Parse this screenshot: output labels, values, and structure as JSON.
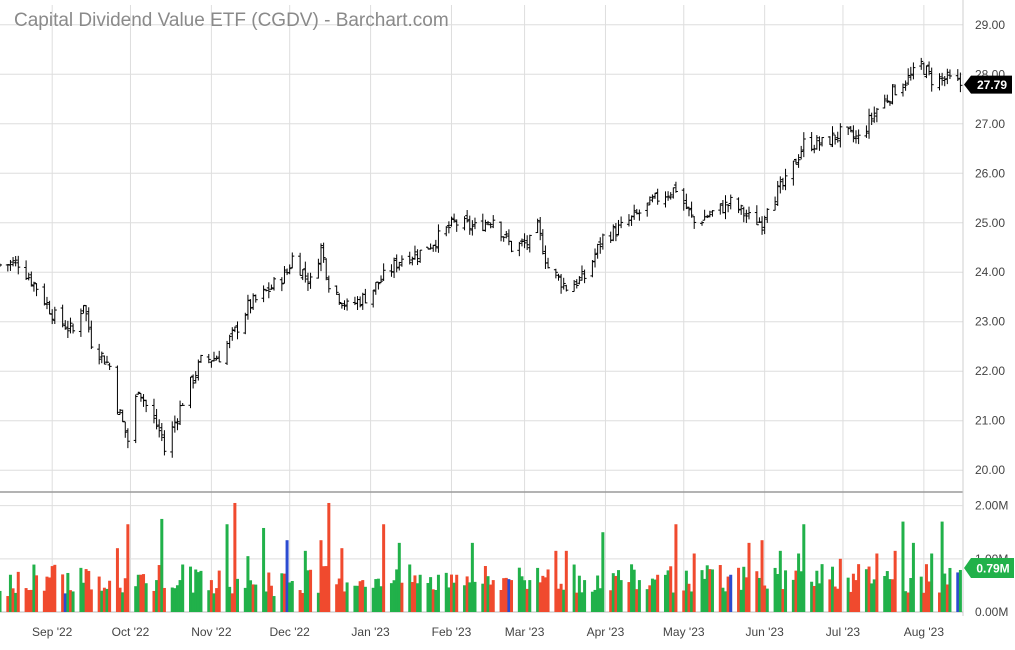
{
  "chart_data": {
    "type": "ohlc-with-volume",
    "title": "Capital Dividend Value ETF (CGDV) - Barchart.com",
    "price_axis": {
      "range": [
        19.6,
        29.4
      ],
      "ticks": [
        "29.00",
        "28.00",
        "27.00",
        "26.00",
        "25.00",
        "24.00",
        "23.00",
        "22.00",
        "21.00",
        "20.00"
      ]
    },
    "volume_axis": {
      "range": [
        0,
        2.2
      ],
      "unit": "M",
      "ticks": [
        "2.00M",
        "1.00M",
        "0.00M"
      ]
    },
    "x_axis": {
      "labels": [
        "Sep '22",
        "Oct '22",
        "Nov '22",
        "Dec '22",
        "Jan '23",
        "Feb '23",
        "Mar '23",
        "Apr '23",
        "May '23",
        "Jun '23",
        "Jul '23",
        "Aug '23"
      ],
      "label_dates": [
        "2022-09-01",
        "2022-10-01",
        "2022-11-01",
        "2022-12-01",
        "2023-01-01",
        "2023-02-01",
        "2023-03-01",
        "2023-04-01",
        "2023-05-01",
        "2023-06-01",
        "2023-07-01",
        "2023-08-01"
      ],
      "range": [
        "2022-08-12",
        "2023-08-16"
      ]
    },
    "last_price": {
      "value": 27.79,
      "label": "27.79"
    },
    "last_volume": {
      "value": 0.79,
      "label": "0.79M"
    },
    "grid": true,
    "colors": {
      "up_volume": "#21b14a",
      "down_volume": "#f04a2e",
      "neutral_volume": "#2b4bd1",
      "price_bar": "#000000",
      "price_badge": "#000000",
      "volume_badge": "#21b14a",
      "grid": "#dedede",
      "title": "#8a8a8a"
    },
    "price_series": [
      {
        "date": "2022-08-12",
        "close": 24.15
      },
      {
        "date": "2022-08-19",
        "close": 24.2
      },
      {
        "date": "2022-08-26",
        "close": 23.7
      },
      {
        "date": "2022-09-02",
        "close": 23.1
      },
      {
        "date": "2022-09-09",
        "close": 22.8
      },
      {
        "date": "2022-09-13",
        "close": 23.4
      },
      {
        "date": "2022-09-16",
        "close": 22.6
      },
      {
        "date": "2022-09-23",
        "close": 22.1
      },
      {
        "date": "2022-09-26",
        "close": 21.3
      },
      {
        "date": "2022-09-30",
        "close": 20.6
      },
      {
        "date": "2022-10-04",
        "close": 21.7
      },
      {
        "date": "2022-10-07",
        "close": 21.3
      },
      {
        "date": "2022-10-13",
        "close": 20.7
      },
      {
        "date": "2022-10-14",
        "close": 20.4
      },
      {
        "date": "2022-10-21",
        "close": 21.4
      },
      {
        "date": "2022-10-28",
        "close": 22.2
      },
      {
        "date": "2022-11-04",
        "close": 22.3
      },
      {
        "date": "2022-11-10",
        "close": 22.8
      },
      {
        "date": "2022-11-15",
        "close": 23.3
      },
      {
        "date": "2022-11-22",
        "close": 23.6
      },
      {
        "date": "2022-11-30",
        "close": 24.0
      },
      {
        "date": "2022-12-02",
        "close": 24.3
      },
      {
        "date": "2022-12-09",
        "close": 23.8
      },
      {
        "date": "2022-12-13",
        "close": 24.5
      },
      {
        "date": "2022-12-16",
        "close": 23.8
      },
      {
        "date": "2022-12-23",
        "close": 23.3
      },
      {
        "date": "2022-12-30",
        "close": 23.5
      },
      {
        "date": "2023-01-06",
        "close": 23.9
      },
      {
        "date": "2023-01-13",
        "close": 24.3
      },
      {
        "date": "2023-01-20",
        "close": 24.4
      },
      {
        "date": "2023-01-27",
        "close": 24.7
      },
      {
        "date": "2023-02-02",
        "close": 25.0
      },
      {
        "date": "2023-02-10",
        "close": 24.9
      },
      {
        "date": "2023-02-17",
        "close": 25.1
      },
      {
        "date": "2023-02-24",
        "close": 24.5
      },
      {
        "date": "2023-03-03",
        "close": 24.6
      },
      {
        "date": "2023-03-06",
        "close": 24.9
      },
      {
        "date": "2023-03-10",
        "close": 24.1
      },
      {
        "date": "2023-03-17",
        "close": 23.7
      },
      {
        "date": "2023-03-24",
        "close": 23.9
      },
      {
        "date": "2023-03-31",
        "close": 24.7
      },
      {
        "date": "2023-04-07",
        "close": 24.9
      },
      {
        "date": "2023-04-14",
        "close": 25.2
      },
      {
        "date": "2023-04-21",
        "close": 25.5
      },
      {
        "date": "2023-04-28",
        "close": 25.7
      },
      {
        "date": "2023-05-05",
        "close": 25.0
      },
      {
        "date": "2023-05-12",
        "close": 25.2
      },
      {
        "date": "2023-05-19",
        "close": 25.4
      },
      {
        "date": "2023-05-26",
        "close": 25.1
      },
      {
        "date": "2023-05-31",
        "close": 25.0
      },
      {
        "date": "2023-06-02",
        "close": 25.4
      },
      {
        "date": "2023-06-09",
        "close": 25.8
      },
      {
        "date": "2023-06-16",
        "close": 26.6
      },
      {
        "date": "2023-06-23",
        "close": 26.6
      },
      {
        "date": "2023-06-30",
        "close": 26.8
      },
      {
        "date": "2023-07-07",
        "close": 26.7
      },
      {
        "date": "2023-07-14",
        "close": 27.3
      },
      {
        "date": "2023-07-21",
        "close": 27.7
      },
      {
        "date": "2023-07-28",
        "close": 28.0
      },
      {
        "date": "2023-07-31",
        "close": 28.2
      },
      {
        "date": "2023-08-04",
        "close": 27.9
      },
      {
        "date": "2023-08-10",
        "close": 27.9
      },
      {
        "date": "2023-08-15",
        "close": 27.79
      }
    ],
    "volume_series": [
      {
        "date": "2022-08-15",
        "value": 0.3
      },
      {
        "date": "2022-08-22",
        "value": 0.45
      },
      {
        "date": "2022-08-29",
        "value": 0.4
      },
      {
        "date": "2022-09-06",
        "value": 0.35
      },
      {
        "date": "2022-09-13",
        "value": 0.55
      },
      {
        "date": "2022-09-20",
        "value": 0.4
      },
      {
        "date": "2022-09-26",
        "value": 1.2
      },
      {
        "date": "2022-09-30",
        "value": 1.65
      },
      {
        "date": "2022-10-04",
        "value": 0.7
      },
      {
        "date": "2022-10-11",
        "value": 0.6
      },
      {
        "date": "2022-10-13",
        "value": 1.75
      },
      {
        "date": "2022-10-20",
        "value": 0.6
      },
      {
        "date": "2022-10-27",
        "value": 0.75
      },
      {
        "date": "2022-11-01",
        "value": 0.6
      },
      {
        "date": "2022-11-07",
        "value": 1.65
      },
      {
        "date": "2022-11-10",
        "value": 2.05
      },
      {
        "date": "2022-11-15",
        "value": 1.05
      },
      {
        "date": "2022-11-21",
        "value": 1.58
      },
      {
        "date": "2022-11-25",
        "value": 0.3
      },
      {
        "date": "2022-11-30",
        "value": 1.35
      },
      {
        "date": "2022-12-07",
        "value": 1.15
      },
      {
        "date": "2022-12-13",
        "value": 1.35
      },
      {
        "date": "2022-12-16",
        "value": 2.05
      },
      {
        "date": "2022-12-21",
        "value": 1.2
      },
      {
        "date": "2022-12-29",
        "value": 0.6
      },
      {
        "date": "2023-01-06",
        "value": 1.65
      },
      {
        "date": "2023-01-12",
        "value": 1.3
      },
      {
        "date": "2023-01-20",
        "value": 0.7
      },
      {
        "date": "2023-01-27",
        "value": 0.7
      },
      {
        "date": "2023-02-03",
        "value": 0.7
      },
      {
        "date": "2023-02-09",
        "value": 1.3
      },
      {
        "date": "2023-02-17",
        "value": 0.6
      },
      {
        "date": "2023-02-24",
        "value": 0.6
      },
      {
        "date": "2023-03-03",
        "value": 0.6
      },
      {
        "date": "2023-03-10",
        "value": 0.8
      },
      {
        "date": "2023-03-13",
        "value": 1.15
      },
      {
        "date": "2023-03-17",
        "value": 1.15
      },
      {
        "date": "2023-03-24",
        "value": 0.6
      },
      {
        "date": "2023-03-31",
        "value": 1.5
      },
      {
        "date": "2023-04-07",
        "value": 0.6
      },
      {
        "date": "2023-04-14",
        "value": 0.6
      },
      {
        "date": "2023-04-21",
        "value": 0.7
      },
      {
        "date": "2023-04-28",
        "value": 1.65
      },
      {
        "date": "2023-05-05",
        "value": 1.1
      },
      {
        "date": "2023-05-12",
        "value": 0.8
      },
      {
        "date": "2023-05-19",
        "value": 0.7
      },
      {
        "date": "2023-05-26",
        "value": 1.3
      },
      {
        "date": "2023-05-31",
        "value": 1.35
      },
      {
        "date": "2023-06-07",
        "value": 1.15
      },
      {
        "date": "2023-06-14",
        "value": 1.1
      },
      {
        "date": "2023-06-16",
        "value": 1.65
      },
      {
        "date": "2023-06-23",
        "value": 0.9
      },
      {
        "date": "2023-06-30",
        "value": 1.0
      },
      {
        "date": "2023-07-07",
        "value": 0.9
      },
      {
        "date": "2023-07-14",
        "value": 1.1
      },
      {
        "date": "2023-07-21",
        "value": 1.15
      },
      {
        "date": "2023-07-24",
        "value": 1.7
      },
      {
        "date": "2023-07-28",
        "value": 1.3
      },
      {
        "date": "2023-08-04",
        "value": 1.1
      },
      {
        "date": "2023-08-08",
        "value": 1.7
      },
      {
        "date": "2023-08-15",
        "value": 0.79
      }
    ]
  }
}
